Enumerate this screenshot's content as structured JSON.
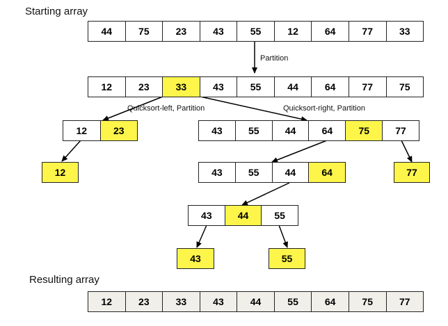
{
  "labels": {
    "starting": "Starting array",
    "resulting": "Resulting array",
    "partition": "Partition",
    "qs_left": "Quicksort-left, Partition",
    "qs_right": "Quicksort-right, Partition"
  },
  "starting_array": [
    "44",
    "75",
    "23",
    "43",
    "55",
    "12",
    "64",
    "77",
    "33"
  ],
  "partitioned_array": [
    "12",
    "23",
    "33",
    "43",
    "55",
    "44",
    "64",
    "77",
    "75"
  ],
  "left_sub": [
    "12",
    "23"
  ],
  "left_leaf": [
    "12"
  ],
  "right_sub": [
    "43",
    "55",
    "44",
    "64",
    "75",
    "77"
  ],
  "right_leaf": [
    "77"
  ],
  "right_sub2": [
    "43",
    "55",
    "44",
    "64"
  ],
  "sub3": [
    "43",
    "44",
    "55"
  ],
  "leaf_43": [
    "43"
  ],
  "leaf_55": [
    "55"
  ],
  "resulting_array": [
    "12",
    "23",
    "33",
    "43",
    "44",
    "55",
    "64",
    "75",
    "77"
  ],
  "colors": {
    "pivot": "#fdf54a",
    "result_bg": "#f1efea",
    "border": "#222222"
  }
}
